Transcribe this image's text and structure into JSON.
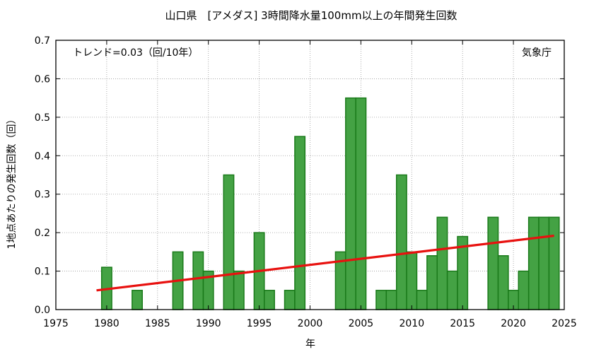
{
  "chart_data": {
    "type": "bar",
    "title": "山口県　[アメダス] 3時間降水量100mm以上の年間発生回数",
    "xlabel": "年",
    "ylabel": "1地点あたりの発生回数（回）",
    "trend_label": "トレンド=0.03（回/10年）",
    "source_label": "気象庁",
    "xlim": [
      1975,
      2025
    ],
    "ylim": [
      0,
      0.7
    ],
    "x_ticks": [
      1975,
      1980,
      1985,
      1990,
      1995,
      2000,
      2005,
      2010,
      2015,
      2020,
      2025
    ],
    "y_ticks": [
      0.0,
      0.1,
      0.2,
      0.3,
      0.4,
      0.5,
      0.6,
      0.7
    ],
    "y_tick_labels": [
      "0.0",
      "0.1",
      "0.2",
      "0.3",
      "0.4",
      "0.5",
      "0.6",
      "0.7"
    ],
    "grid": true,
    "bar_color": "#44a244",
    "bar_edge_color": "#1a7a1a",
    "trend_color": "#e8110f",
    "years": [
      1979,
      1980,
      1981,
      1982,
      1983,
      1984,
      1985,
      1986,
      1987,
      1988,
      1989,
      1990,
      1991,
      1992,
      1993,
      1994,
      1995,
      1996,
      1997,
      1998,
      1999,
      2000,
      2001,
      2002,
      2003,
      2004,
      2005,
      2006,
      2007,
      2008,
      2009,
      2010,
      2011,
      2012,
      2013,
      2014,
      2015,
      2016,
      2017,
      2018,
      2019,
      2020,
      2021,
      2022,
      2023,
      2024
    ],
    "values": [
      0.0,
      0.11,
      0.0,
      0.0,
      0.05,
      0.0,
      0.0,
      0.0,
      0.15,
      0.0,
      0.15,
      0.1,
      0.0,
      0.35,
      0.1,
      0.0,
      0.2,
      0.05,
      0.0,
      0.05,
      0.45,
      0.0,
      0.0,
      0.0,
      0.15,
      0.55,
      0.55,
      0.0,
      0.05,
      0.05,
      0.35,
      0.15,
      0.05,
      0.14,
      0.24,
      0.1,
      0.19,
      0.0,
      0.0,
      0.24,
      0.14,
      0.05,
      0.1,
      0.24,
      0.24,
      0.24
    ],
    "trend": {
      "x": [
        1979,
        2024
      ],
      "y": [
        0.05,
        0.192
      ]
    }
  }
}
